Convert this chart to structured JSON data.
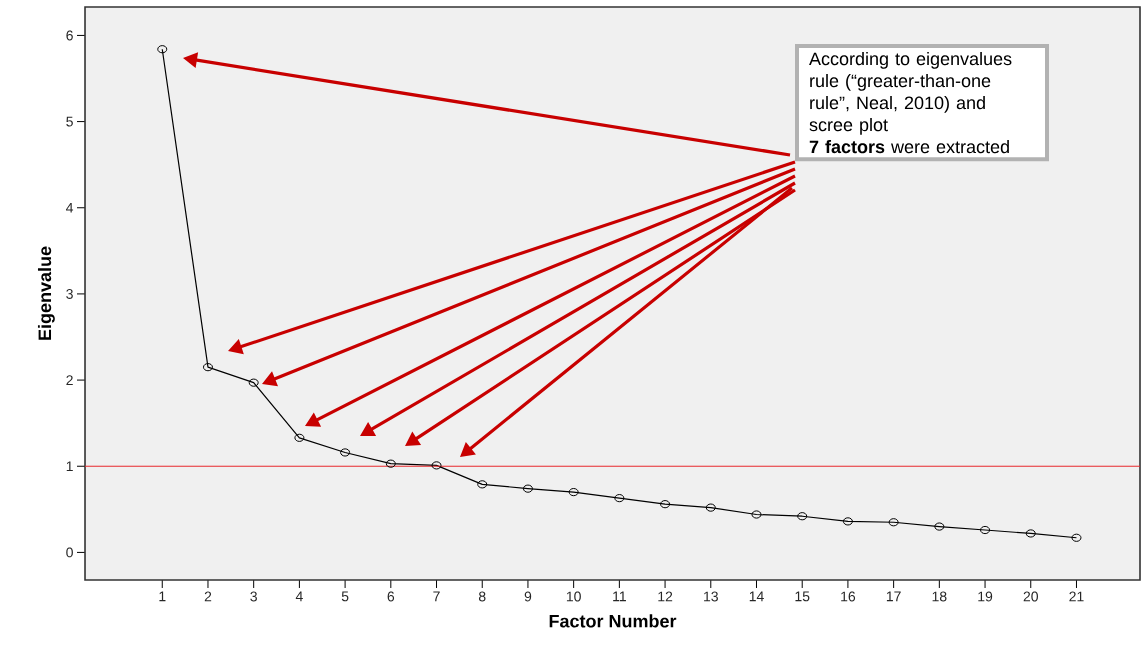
{
  "chart_data": {
    "type": "line",
    "xlabel": "Factor Number",
    "ylabel": "Eigenvalue",
    "x": [
      1,
      2,
      3,
      4,
      5,
      6,
      7,
      8,
      9,
      10,
      11,
      12,
      13,
      14,
      15,
      16,
      17,
      18,
      19,
      20,
      21
    ],
    "series": [
      {
        "color": "#000000",
        "values": [
          5.84,
          2.15,
          1.97,
          1.33,
          1.16,
          1.03,
          1.01,
          0.79,
          0.74,
          0.7,
          0.63,
          0.56,
          0.52,
          0.44,
          0.42,
          0.36,
          0.35,
          0.3,
          0.26,
          0.22,
          0.17
        ]
      }
    ],
    "xlim": [
      -0.69,
      22.39
    ],
    "ylim": [
      -0.32,
      6.33
    ],
    "xticks": [
      1,
      2,
      3,
      4,
      5,
      6,
      7,
      8,
      9,
      10,
      11,
      12,
      13,
      14,
      15,
      16,
      17,
      18,
      19,
      20,
      21
    ],
    "yticks": [
      0,
      1,
      2,
      3,
      4,
      5,
      6
    ],
    "marker": "circle",
    "line_style": "solid",
    "grid": false,
    "ref_lines": [
      {
        "axis": "y",
        "value": 1,
        "color": "#e8262a"
      }
    ],
    "annotations": [
      "According to eigenvalues rule (“greater-than-one rule”, Neal, 2010) and scree plot",
      "**7 factors** were extracted"
    ]
  }
}
